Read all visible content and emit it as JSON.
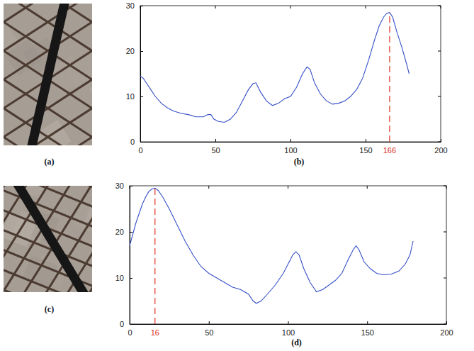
{
  "chart_data": [
    {
      "type": "line",
      "caption": "(b)",
      "color": "#3550c8",
      "x": [
        0,
        2,
        4,
        7,
        10,
        14,
        18,
        22,
        27,
        32,
        37,
        42,
        45,
        47,
        49,
        52,
        56,
        60,
        64,
        68,
        72,
        75,
        77,
        80,
        84,
        88,
        92,
        96,
        100,
        104,
        108,
        111,
        113,
        116,
        120,
        124,
        128,
        132,
        136,
        140,
        144,
        148,
        152,
        156,
        159,
        162,
        164,
        166,
        168,
        171,
        174,
        177,
        179
      ],
      "values": [
        14.5,
        14,
        13,
        11.5,
        10,
        8.5,
        7.5,
        6.8,
        6.3,
        6,
        5.5,
        5.5,
        6,
        6,
        5,
        4.5,
        4.3,
        5,
        6.5,
        9,
        11.5,
        12.8,
        13,
        11,
        9,
        8,
        8.5,
        9.5,
        10,
        12,
        15,
        16.5,
        16,
        13,
        10.5,
        9,
        8.3,
        8.5,
        9,
        10,
        11.5,
        14,
        18,
        22.5,
        25.5,
        27.5,
        28.3,
        28.5,
        27.5,
        24,
        21,
        17.5,
        15
      ],
      "xlim": [
        0,
        200
      ],
      "xticks": [
        0,
        50,
        100,
        150,
        200
      ],
      "ylim": [
        0,
        30
      ],
      "yticks": [
        0,
        10,
        20,
        30
      ],
      "annotations": [
        {
          "x": 166,
          "label": "166",
          "color": "#e0301e",
          "line_style": "dashed"
        }
      ]
    },
    {
      "type": "line",
      "caption": "(d)",
      "color": "#3550c8",
      "x": [
        0,
        2,
        4,
        6,
        8,
        10,
        12,
        14,
        16,
        18,
        21,
        25,
        30,
        35,
        40,
        45,
        50,
        55,
        60,
        65,
        70,
        75,
        78,
        80,
        83,
        87,
        92,
        97,
        100,
        103,
        105,
        107,
        110,
        114,
        118,
        122,
        126,
        130,
        134,
        138,
        141,
        143,
        145,
        148,
        152,
        156,
        160,
        165,
        170,
        174,
        177,
        179
      ],
      "values": [
        17,
        19.5,
        22,
        24,
        26,
        27.5,
        28.7,
        29.3,
        29.5,
        29,
        27.5,
        25,
        21.5,
        18,
        15,
        12.5,
        11,
        10,
        9,
        8,
        7.5,
        6.5,
        5,
        4.5,
        5,
        6.5,
        8.5,
        11,
        13,
        15,
        15.7,
        15,
        12,
        9,
        7,
        7.5,
        8.5,
        9.5,
        11,
        14,
        16,
        17,
        16,
        13.5,
        12,
        11,
        10.7,
        10.8,
        11.5,
        13,
        15,
        18
      ],
      "xlim": [
        0,
        200
      ],
      "xticks": [
        0,
        50,
        100,
        150,
        200
      ],
      "ylim": [
        0,
        30
      ],
      "yticks": [
        0,
        10,
        20,
        30
      ],
      "annotations": [
        {
          "x": 16,
          "label": "16",
          "color": "#e0301e",
          "line_style": "dashed"
        }
      ]
    }
  ],
  "figures": [
    {
      "caption": "(a)"
    },
    {
      "caption": "(c)"
    }
  ]
}
